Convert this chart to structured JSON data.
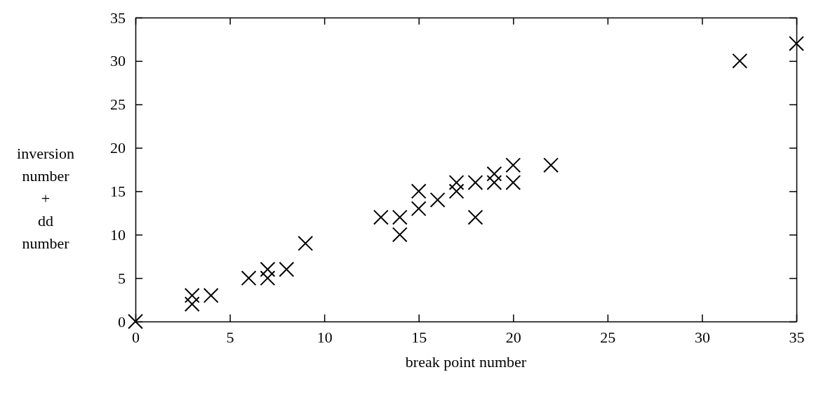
{
  "chart_data": {
    "type": "scatter",
    "xlabel": "break point number",
    "ylabel": "inversion number + dd number",
    "x": [
      0,
      3,
      3,
      4,
      6,
      7,
      7,
      8,
      9,
      13,
      14,
      14,
      15,
      15,
      16,
      17,
      17,
      18,
      18,
      19,
      19,
      20,
      20,
      22,
      32,
      35
    ],
    "values": [
      0,
      3,
      2,
      3,
      5,
      6,
      5,
      6,
      9,
      12,
      12,
      10,
      15,
      13,
      14,
      16,
      15,
      16,
      12,
      17,
      16,
      18,
      16,
      18,
      30,
      32
    ],
    "color": "#000000",
    "marker": "cross",
    "xlim": [
      0,
      35
    ],
    "ylim": [
      0,
      35
    ],
    "xticks": [
      0,
      5,
      10,
      15,
      20,
      25,
      30,
      35
    ],
    "yticks": [
      0,
      5,
      10,
      15,
      20,
      25,
      30,
      35
    ],
    "grid": false
  }
}
